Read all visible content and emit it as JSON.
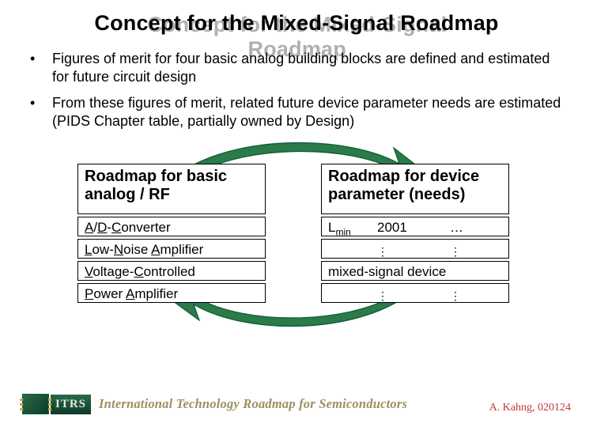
{
  "title": "Concept for the Mixed-Signal Roadmap",
  "bullets": [
    "Figures of merit for four basic analog building blocks are defined and estimated for future circuit design",
    "From these figures of merit, related future device parameter needs are estimated (PIDS Chapter table, partially owned by Design)"
  ],
  "left": {
    "header": "Roadmap for basic analog / RF",
    "items_html": [
      "<span class='ul'>A</span>/<span class='ul'>D</span>-<span class='ul'>C</span>onverter",
      "<span class='ul'>L</span>ow-<span class='ul'>N</span>oise <span class='ul'>A</span>mplifier",
      "<span class='ul'>V</span>oltage-<span class='ul'>C</span>ontrolled",
      "<span class='ul'>P</span>ower <span class='ul'>A</span>mplifier"
    ]
  },
  "right": {
    "header": "Roadmap for device parameter (needs)",
    "rows": [
      {
        "c1_html": "L<span class='small'>min</span>",
        "c2": "2001",
        "c3": "…"
      },
      {
        "c1_html": "",
        "c2_html": "<span class='vdots'>⋮</span>",
        "c3_html": "<span class='vdots'>⋮</span>"
      },
      {
        "full": "mixed-signal device"
      },
      {
        "c1_html": "",
        "c2_html": "<span class='vdots'>⋮</span>",
        "c3_html": "<span class='vdots'>⋮</span>"
      }
    ]
  },
  "arrows": {
    "fill": "#2a7a4a",
    "stroke": "#0d5a36"
  },
  "footer": {
    "logo_abbr": "ITRS",
    "org": "International Technology Roadmap for Semiconductors",
    "attrib": "A. Kahng, 020124"
  },
  "colors": {
    "title_shadow": "#b0b0b0",
    "text": "#000000",
    "attrib": "#c23a3a"
  }
}
